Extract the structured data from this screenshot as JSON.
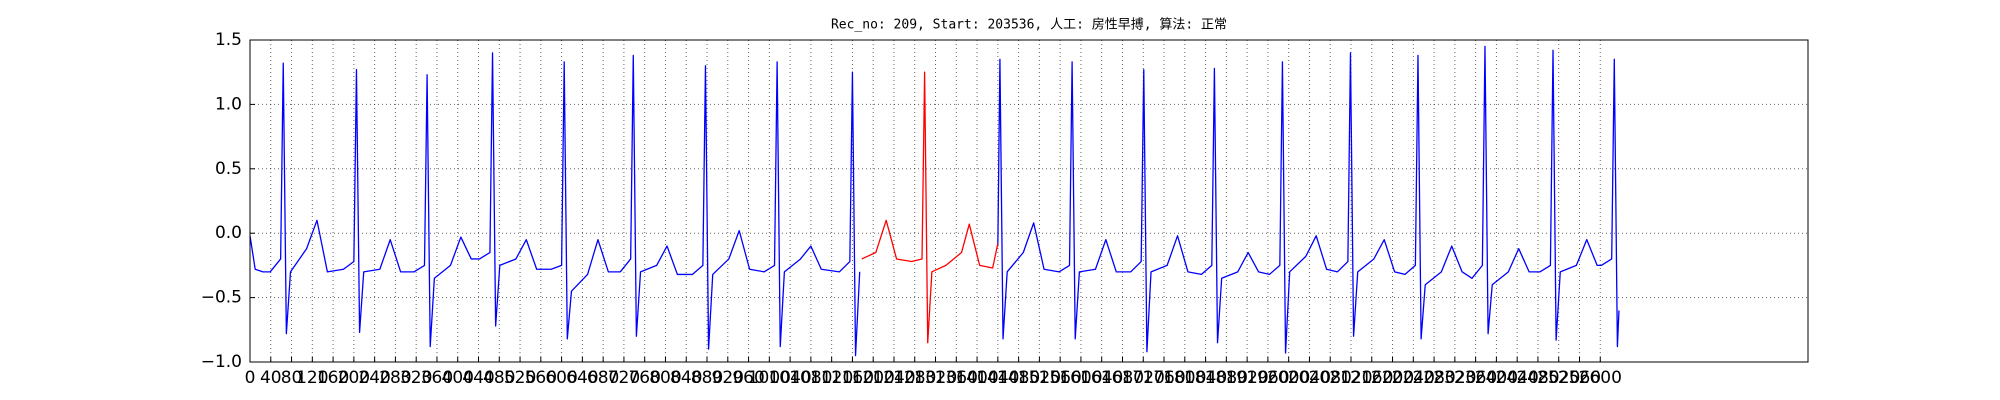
{
  "chart_data": {
    "type": "line",
    "title": "Rec_no: 209, Start: 203536, 人工: 房性早搏, 算法: 正常",
    "xlim": [
      0,
      3000
    ],
    "ylim": [
      -1.0,
      1.5
    ],
    "xticks": [
      0,
      40,
      80,
      120,
      160,
      200,
      240,
      280,
      320,
      360,
      400,
      440,
      480,
      520,
      560,
      600,
      640,
      680,
      720,
      760,
      800,
      840,
      880,
      920,
      960,
      1000,
      1040,
      1080,
      1120,
      1160,
      1200,
      1240,
      1280,
      1320,
      1360,
      1400,
      1440,
      1480,
      1520,
      1560,
      1600,
      1640,
      1680,
      1720,
      1760,
      1800,
      1840,
      1880,
      1920,
      1960,
      2000,
      2040,
      2080,
      2120,
      2160,
      2200,
      2240,
      2280,
      2320,
      2360,
      2400,
      2440,
      2480,
      2520,
      2560,
      2600
    ],
    "yticks": [
      {
        "value": -1.0,
        "label": "−1.0"
      },
      {
        "value": -0.5,
        "label": "−0.5"
      },
      {
        "value": 0.0,
        "label": "0.0"
      },
      0.5,
      {
        "value": 1.0,
        "label": "1.0"
      },
      {
        "value": 1.5,
        "label": "1.5"
      }
    ],
    "grid": true,
    "series": [
      {
        "color": "#0000ff",
        "x": [
          0,
          10,
          25,
          39,
          59,
          64,
          70,
          78,
          109,
          129,
          149,
          180,
          200,
          205,
          211,
          219,
          250,
          270,
          290,
          316,
          336,
          341,
          347,
          355,
          386,
          406,
          426,
          442,
          462,
          467,
          473,
          481,
          512,
          532,
          552,
          580,
          600,
          605,
          611,
          619,
          650,
          670,
          690,
          713,
          733,
          738,
          744,
          752,
          783,
          803,
          823,
          852,
          872,
          877,
          883,
          891,
          922,
          942,
          962,
          990,
          1010,
          1015,
          1021,
          1029,
          1060,
          1080,
          1100,
          1135,
          1155,
          1160,
          1166,
          1174,
          1176,
          1440,
          1444,
          1450,
          1458,
          1489,
          1509,
          1529,
          1558,
          1578,
          1583,
          1589,
          1597,
          1628,
          1648,
          1668,
          1696,
          1716,
          1721,
          1727,
          1735,
          1766,
          1786,
          1806,
          1832,
          1852,
          1857,
          1863,
          1871,
          1902,
          1922,
          1942,
          1963,
          1983,
          1988,
          1994,
          2002,
          2033,
          2053,
          2073,
          2094,
          2114,
          2119,
          2125,
          2133,
          2164,
          2184,
          2204,
          2224,
          2244,
          2249,
          2255,
          2263,
          2294,
          2314,
          2334,
          2353,
          2373,
          2378,
          2384,
          2392,
          2423,
          2443,
          2463,
          2484,
          2504,
          2509,
          2515,
          2523,
          2554,
          2574,
          2594,
          2602,
          2622,
          2627,
          2633,
          2636
        ],
        "values": [
          -0.02,
          -0.28,
          -0.3,
          -0.3,
          -0.2,
          1.32,
          -0.78,
          -0.3,
          -0.12,
          0.1,
          -0.3,
          -0.28,
          -0.22,
          1.27,
          -0.77,
          -0.3,
          -0.28,
          -0.05,
          -0.3,
          -0.3,
          -0.25,
          1.23,
          -0.88,
          -0.35,
          -0.25,
          -0.03,
          -0.2,
          -0.2,
          -0.15,
          1.4,
          -0.72,
          -0.25,
          -0.2,
          -0.05,
          -0.28,
          -0.28,
          -0.25,
          1.33,
          -0.82,
          -0.45,
          -0.32,
          -0.05,
          -0.3,
          -0.3,
          -0.2,
          1.38,
          -0.8,
          -0.3,
          -0.25,
          -0.1,
          -0.32,
          -0.32,
          -0.25,
          1.3,
          -0.9,
          -0.32,
          -0.2,
          0.02,
          -0.28,
          -0.3,
          -0.25,
          1.33,
          -0.88,
          -0.3,
          -0.2,
          -0.1,
          -0.28,
          -0.3,
          -0.22,
          1.25,
          -0.95,
          -0.3,
          null,
          -0.1,
          1.35,
          -0.82,
          -0.3,
          -0.15,
          0.08,
          -0.28,
          -0.3,
          -0.25,
          1.33,
          -0.82,
          -0.3,
          -0.28,
          -0.05,
          -0.3,
          -0.3,
          -0.22,
          1.27,
          -0.92,
          -0.3,
          -0.25,
          -0.02,
          -0.3,
          -0.32,
          -0.25,
          1.28,
          -0.85,
          -0.35,
          -0.3,
          -0.15,
          -0.3,
          -0.32,
          -0.25,
          1.33,
          -0.93,
          -0.3,
          -0.18,
          -0.02,
          -0.28,
          -0.3,
          -0.22,
          1.4,
          -0.8,
          -0.3,
          -0.2,
          -0.05,
          -0.3,
          -0.32,
          -0.25,
          1.38,
          -0.82,
          -0.4,
          -0.3,
          -0.1,
          -0.3,
          -0.35,
          -0.25,
          1.45,
          -0.78,
          -0.4,
          -0.3,
          -0.12,
          -0.3,
          -0.3,
          -0.25,
          1.42,
          -0.83,
          -0.3,
          -0.25,
          -0.05,
          -0.25,
          -0.25,
          -0.2,
          1.35,
          -0.88,
          -0.6
        ]
      },
      {
        "color": "#ff0000",
        "x": [
          1178,
          1205,
          1225,
          1245,
          1274,
          1294,
          1299,
          1305,
          1313,
          1340,
          1370,
          1385,
          1405,
          1430,
          1440
        ],
        "values": [
          -0.2,
          -0.15,
          0.1,
          -0.2,
          -0.22,
          -0.2,
          1.25,
          -0.85,
          -0.3,
          -0.25,
          -0.15,
          0.07,
          -0.25,
          -0.27,
          -0.08
        ]
      }
    ]
  }
}
